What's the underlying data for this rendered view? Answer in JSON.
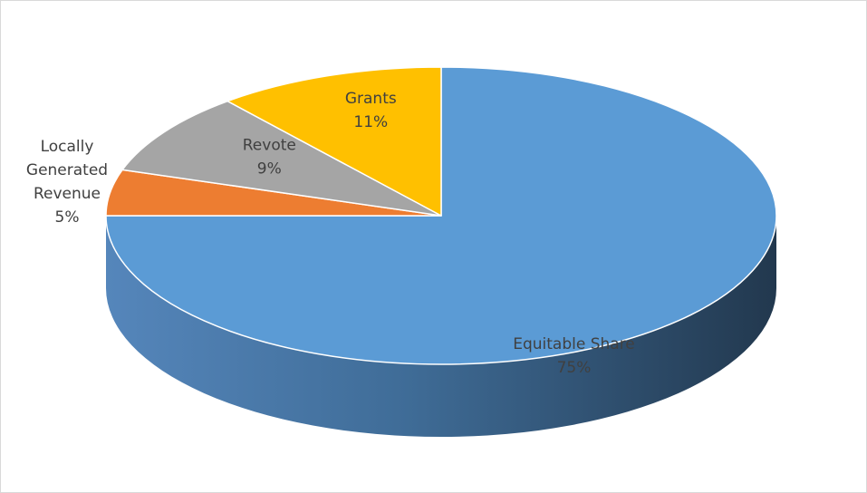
{
  "chart_data": {
    "type": "pie",
    "style": "3d",
    "title": "",
    "legend": "none",
    "slices": [
      {
        "name": "Equitable Share",
        "label_lines": [
          "Equitable Share"
        ],
        "pct_label": "75%",
        "value": 75,
        "color": "#5B9BD5",
        "side_color": "#41719C"
      },
      {
        "name": "Locally Generated Revenue",
        "label_lines": [
          "Locally",
          "Generated",
          "Revenue"
        ],
        "pct_label": "5%",
        "value": 5,
        "color": "#ED7D31",
        "side_color": "#AE5A21"
      },
      {
        "name": "Revote",
        "label_lines": [
          "Revote"
        ],
        "pct_label": "9%",
        "value": 9,
        "color": "#A5A5A5",
        "side_color": "#7C7C7C"
      },
      {
        "name": "Grants",
        "label_lines": [
          "Grants"
        ],
        "pct_label": "11%",
        "value": 11,
        "color": "#FFC000",
        "side_color": "#BC8C00"
      }
    ]
  }
}
